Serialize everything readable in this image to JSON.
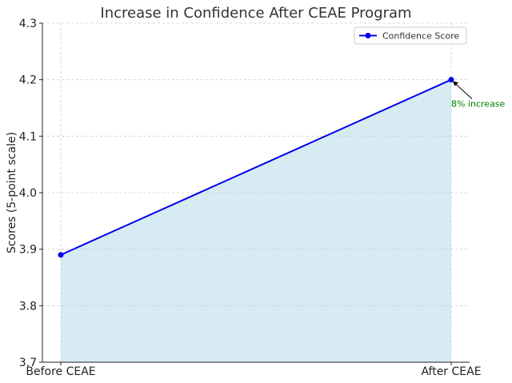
{
  "chart_data": {
    "type": "area",
    "title": "Increase in Confidence After CEAE Program",
    "xlabel": "",
    "ylabel": "Scores (5-point scale)",
    "categories": [
      "Before CEAE",
      "After CEAE"
    ],
    "series": [
      {
        "name": "Confidence Score",
        "values": [
          3.89,
          4.2
        ],
        "color": "#0000ee",
        "fill": "#add8e6"
      }
    ],
    "ylim": [
      3.7,
      4.3
    ],
    "yticks": [
      "3.7",
      "3.8",
      "3.9",
      "4.0",
      "4.1",
      "4.2",
      "4.3"
    ],
    "grid": true,
    "legend": {
      "position": "top-right",
      "entries": [
        "Confidence Score"
      ]
    },
    "annotations": [
      {
        "text": "8% increase",
        "category": "After CEAE",
        "value": 4.2,
        "color": "#008000"
      }
    ]
  }
}
